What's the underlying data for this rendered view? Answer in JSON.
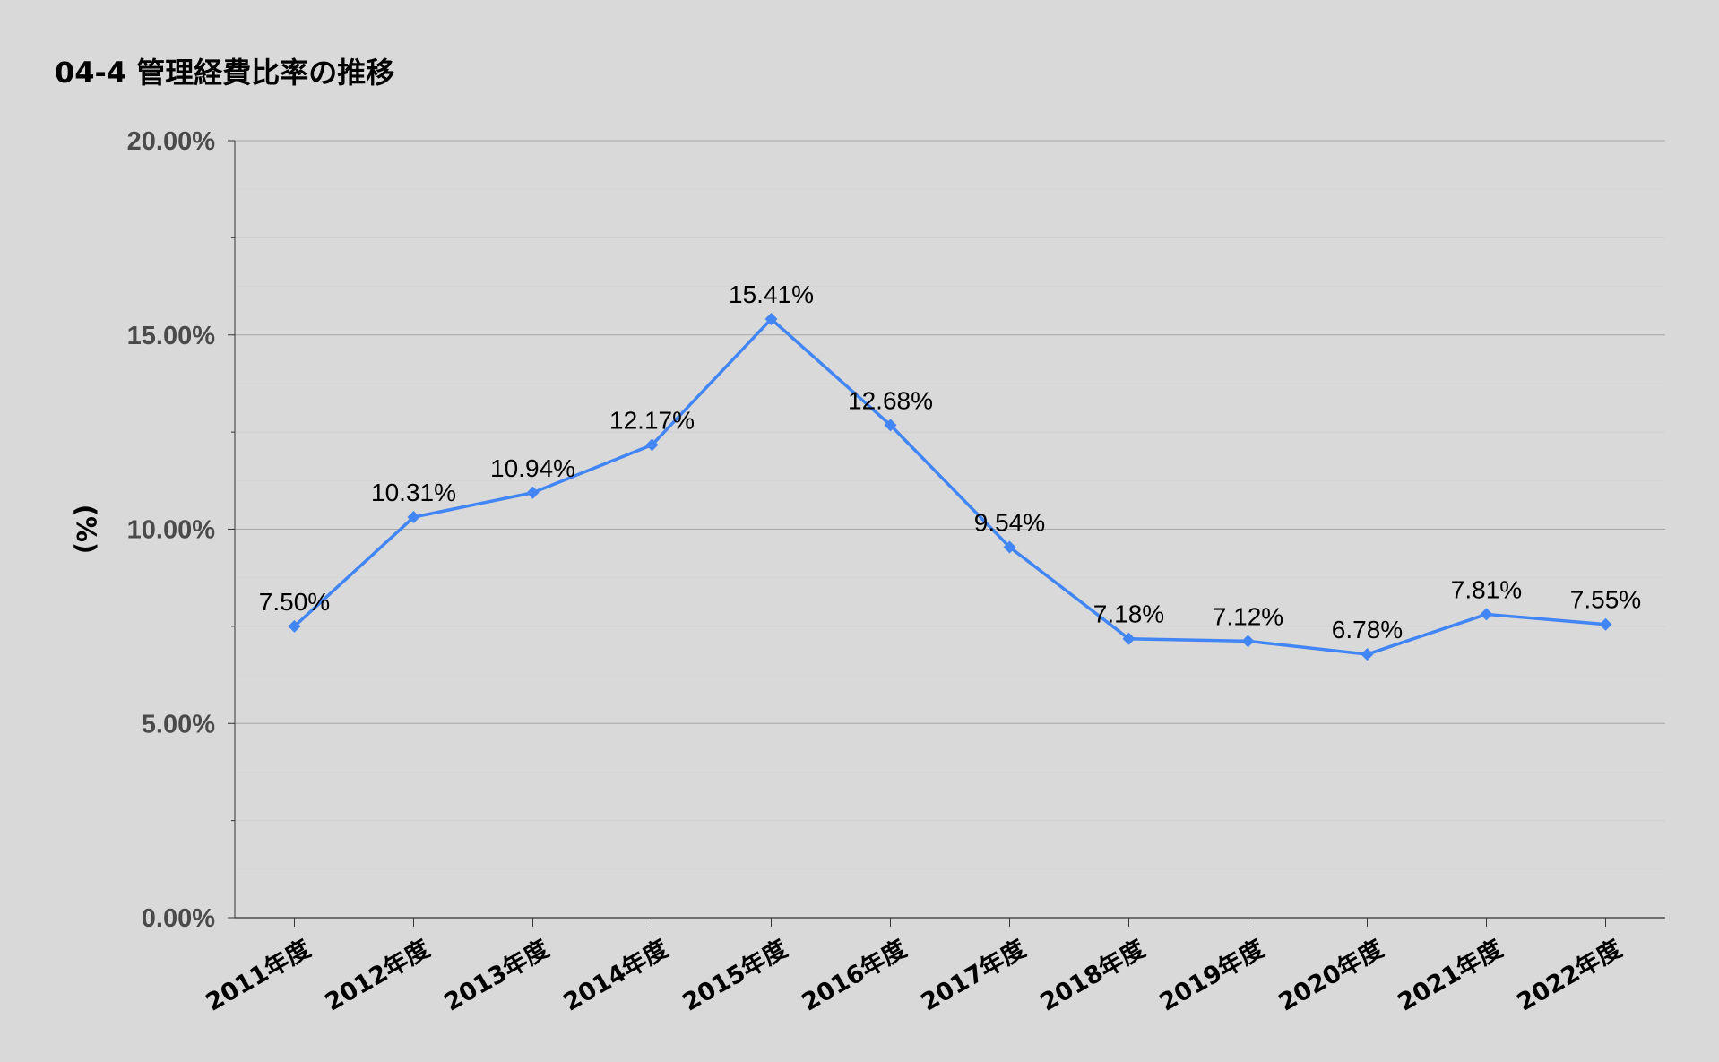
{
  "chart_data": {
    "type": "line",
    "title": "04-4 管理経費比率の推移",
    "xlabel": "",
    "ylabel": "(%)",
    "ylim": [
      0,
      20
    ],
    "yticks": [
      "0.00%",
      "5.00%",
      "10.00%",
      "15.00%",
      "20.00%"
    ],
    "grid": true,
    "legend": "none",
    "categories": [
      "2011年度",
      "2012年度",
      "2013年度",
      "2014年度",
      "2015年度",
      "2016年度",
      "2017年度",
      "2018年度",
      "2019年度",
      "2020年度",
      "2021年度",
      "2022年度"
    ],
    "series": [
      {
        "values": [
          7.5,
          10.31,
          10.94,
          12.17,
          15.41,
          12.68,
          9.54,
          7.18,
          7.12,
          6.78,
          7.81,
          7.55
        ],
        "labels": [
          "7.50%",
          "10.31%",
          "10.94%",
          "12.17%",
          "15.41%",
          "12.68%",
          "9.54%",
          "7.18%",
          "7.12%",
          "6.78%",
          "7.81%",
          "7.55%"
        ],
        "color": "#4285f4"
      }
    ],
    "colors": {
      "background": "#d9d9d9",
      "gridline": "#a8a8a8",
      "minor_gridline": "#cfcfcf",
      "axis": "#333333"
    }
  }
}
